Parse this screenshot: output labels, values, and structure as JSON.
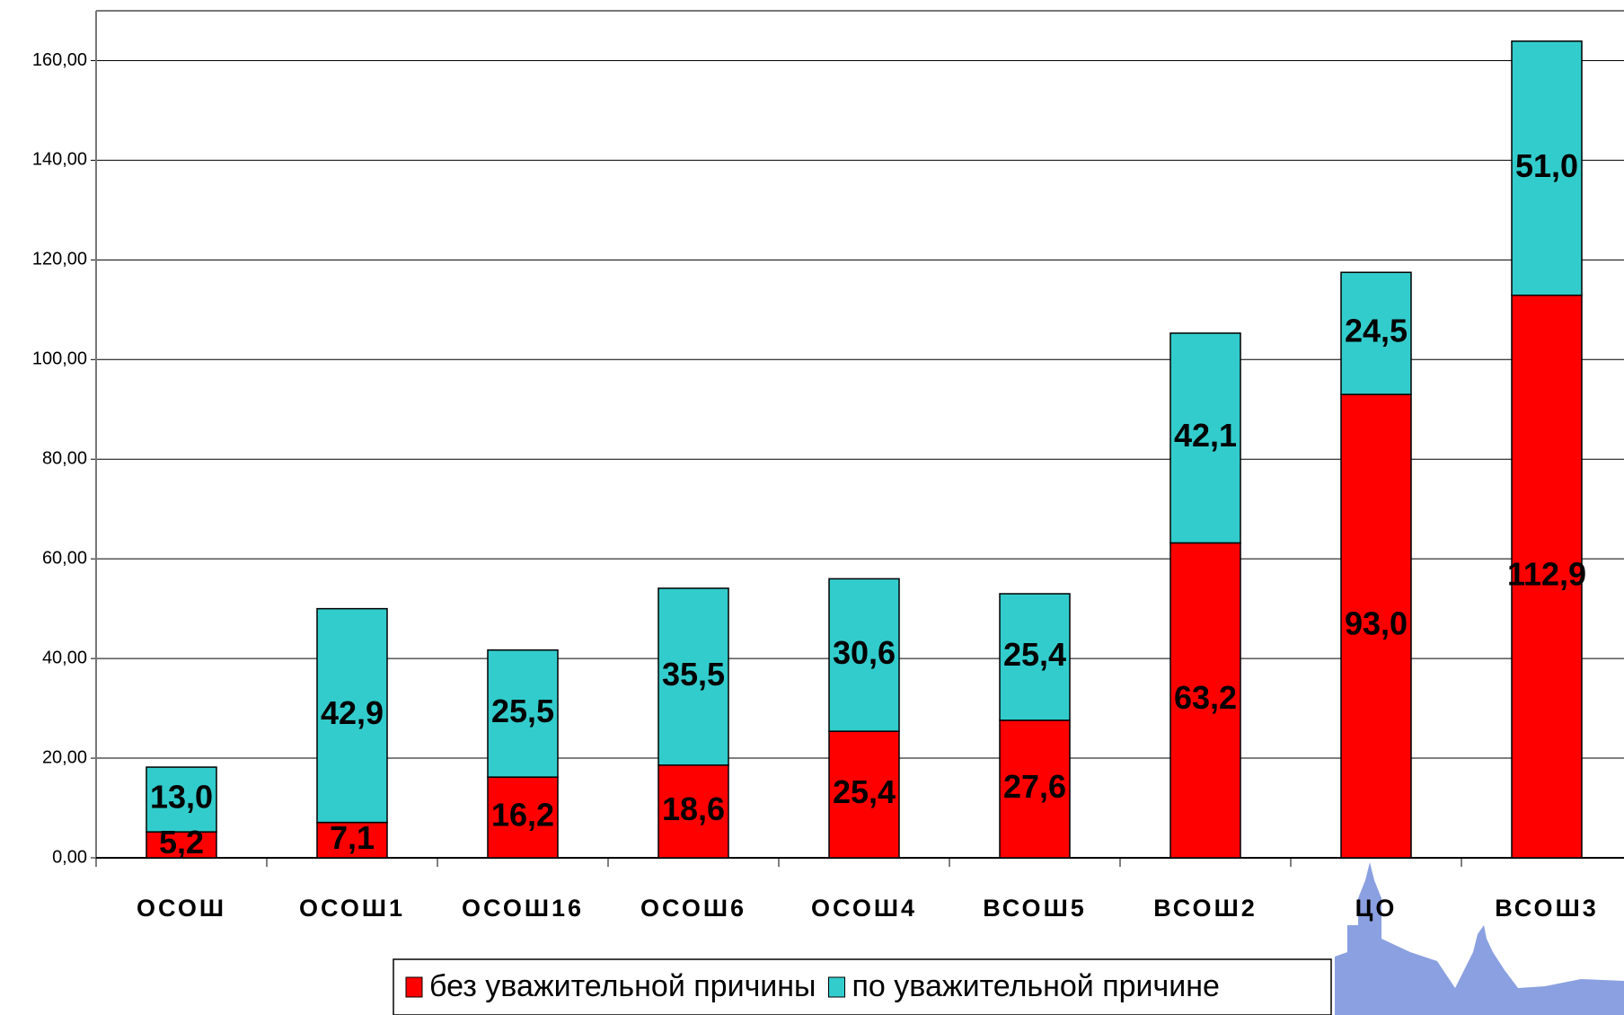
{
  "chart_data": {
    "type": "stacked_bar",
    "categories": [
      "ОСОШ",
      "ОСОШ1",
      "ОСОШ16",
      "ОСОШ6",
      "ОСОШ4",
      "ВСОШ5",
      "ВСОШ2",
      "ЦО",
      "ВСОШ3"
    ],
    "series": [
      {
        "name": "без уважительной причины",
        "color": "#ff0000",
        "values": [
          5.2,
          7.1,
          16.2,
          18.6,
          25.4,
          27.6,
          63.2,
          93.0,
          112.9
        ],
        "value_labels": [
          "5,2",
          "7,1",
          "16,2",
          "18,6",
          "25,4",
          "27,6",
          "63,2",
          "93,0",
          "112,9"
        ]
      },
      {
        "name": "по уважительной причине",
        "color": "#33cccc",
        "values": [
          13.0,
          42.9,
          25.5,
          35.5,
          30.6,
          25.4,
          42.1,
          24.5,
          51.0
        ],
        "value_labels": [
          "13,0",
          "42,9",
          "25,5",
          "35,5",
          "30,6",
          "25,4",
          "42,1",
          "24,5",
          "51,0"
        ]
      }
    ],
    "ylim": [
      0,
      170
    ],
    "yticks": [
      {
        "value": 0,
        "label": "0,00"
      },
      {
        "value": 20,
        "label": "20,00"
      },
      {
        "value": 40,
        "label": "40,00"
      },
      {
        "value": 60,
        "label": "60,00"
      },
      {
        "value": 80,
        "label": "80,00"
      },
      {
        "value": 100,
        "label": "100,00"
      },
      {
        "value": 120,
        "label": "120,00"
      },
      {
        "value": 140,
        "label": "140,00"
      },
      {
        "value": 160,
        "label": "160,00"
      }
    ],
    "grid": true,
    "legend": "bottom"
  }
}
